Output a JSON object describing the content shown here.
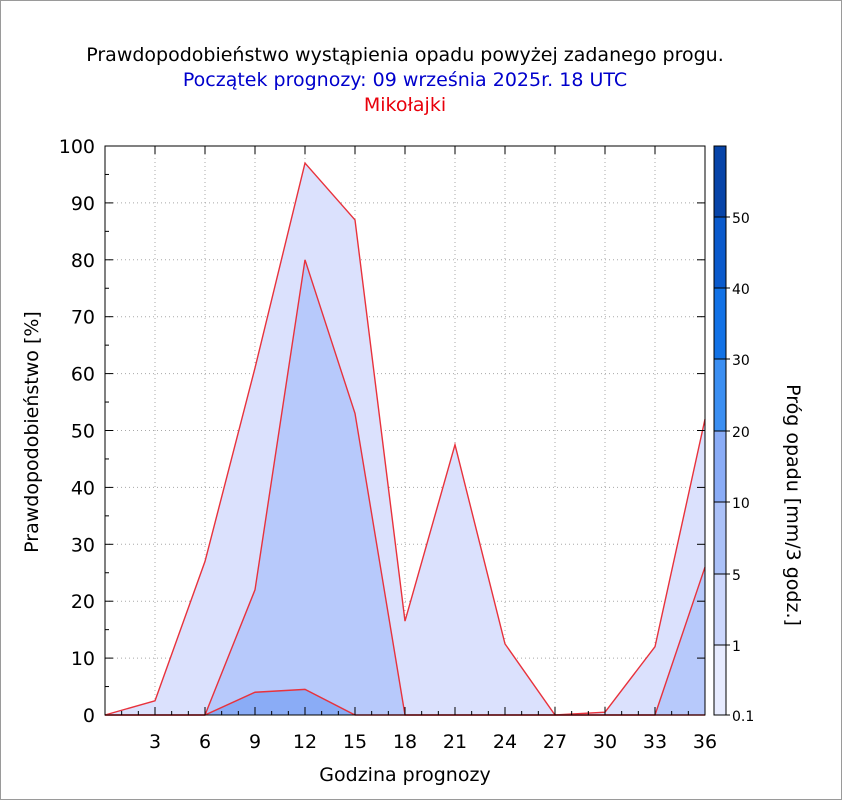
{
  "title": "Prawdopodobieństwo wystąpienia opadu powyżej zadanego progu.",
  "subtitle": "Początek prognozy: 09 września 2025r. 18 UTC",
  "location": "Mikołajki",
  "chart_data": {
    "type": "area",
    "title": "Prawdopodobieństwo wystąpienia opadu powyżej zadanego progu.",
    "xlabel": "Godzina prognozy",
    "ylabel": "Prawdopodobieństwo [%]",
    "xlim": [
      0,
      36
    ],
    "ylim": [
      0,
      100
    ],
    "x": [
      0,
      3,
      6,
      9,
      12,
      15,
      18,
      21,
      24,
      27,
      30,
      33,
      36
    ],
    "x_ticks": [
      "3",
      "6",
      "9",
      "12",
      "15",
      "18",
      "21",
      "24",
      "27",
      "30",
      "33",
      "36"
    ],
    "y_ticks": [
      "0",
      "10",
      "20",
      "30",
      "40",
      "50",
      "60",
      "70",
      "80",
      "90",
      "100"
    ],
    "grid": true,
    "series": [
      {
        "name": "0.1",
        "color": "#dbe1fd",
        "values": [
          0,
          2.5,
          27,
          61,
          97,
          87,
          16.5,
          47.5,
          12.5,
          0,
          0.5,
          12,
          52
        ]
      },
      {
        "name": "1",
        "color": "#b7c9fb",
        "values": [
          0,
          0,
          0,
          22,
          80,
          53,
          0,
          0,
          0,
          0,
          0,
          0,
          26
        ]
      },
      {
        "name": "5",
        "color": "#8aacf6",
        "values": [
          0,
          0,
          0,
          4,
          4.5,
          0,
          0,
          0,
          0,
          0,
          0,
          0,
          0
        ]
      }
    ],
    "outline_color": "#e8323c",
    "colorbar": {
      "label": "Próg opadu [mm/3 godz.]",
      "levels": [
        {
          "label": "0.1",
          "color": "#e7ebfe"
        },
        {
          "label": "1",
          "color": "#ccd7fc"
        },
        {
          "label": "5",
          "color": "#abc1f8"
        },
        {
          "label": "10",
          "color": "#8aacf6"
        },
        {
          "label": "20",
          "color": "#3c8ff2"
        },
        {
          "label": "30",
          "color": "#1272e6"
        },
        {
          "label": "40",
          "color": "#0a5acc"
        },
        {
          "label": "50",
          "color": "#0744a8"
        },
        {
          "label": "",
          "color": "#053390"
        }
      ]
    }
  }
}
